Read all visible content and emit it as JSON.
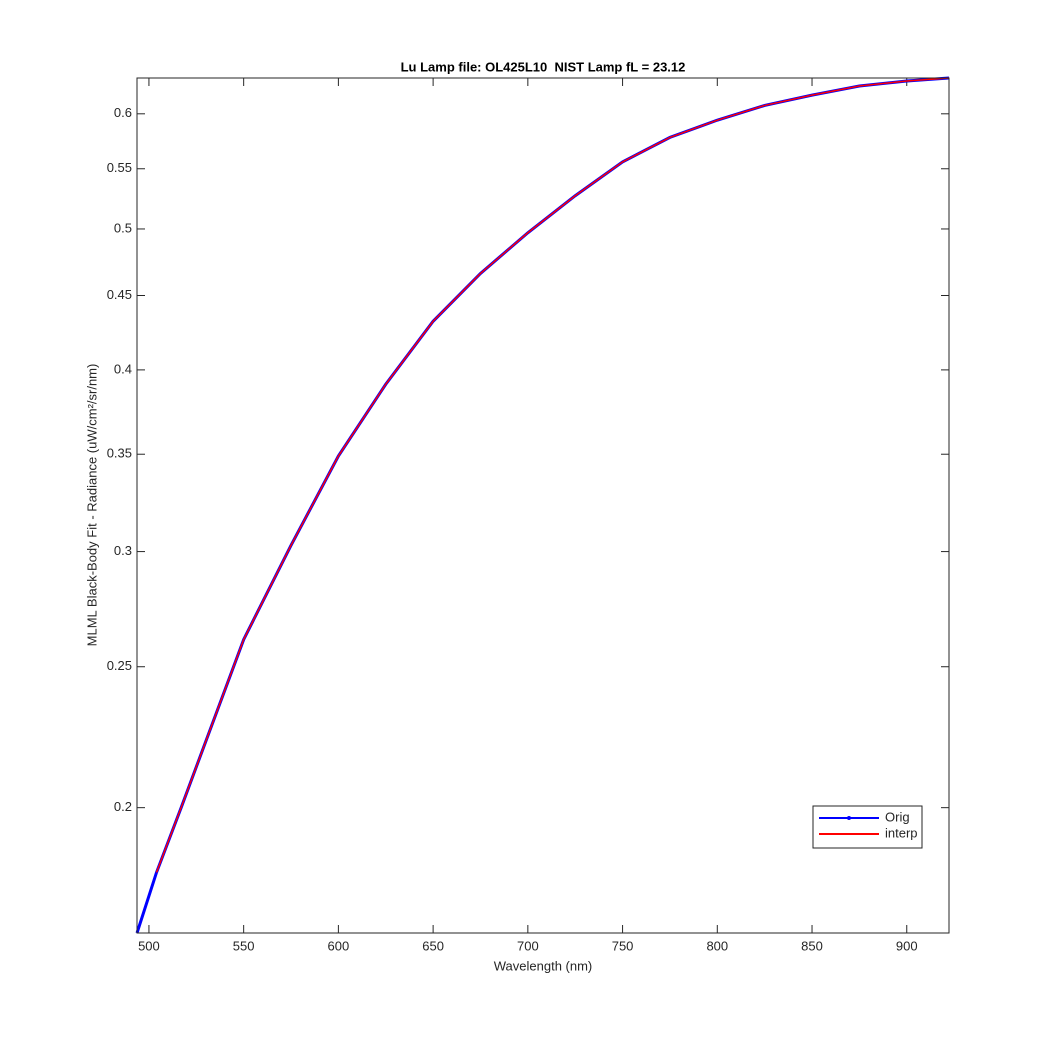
{
  "chart_data": {
    "type": "line",
    "title": "Lu Lamp file: OL425L10  NIST Lamp fL = 23.12",
    "x_label": "Wavelength (nm)",
    "y_label": "MLML Black-Body Fit - Radiance (uW/cm²/sr/nm)",
    "y_scale": "log",
    "xlim": [
      493.7,
      922.3
    ],
    "ylim": [
      0.164,
      0.635
    ],
    "xticks": [
      500,
      550,
      600,
      650,
      700,
      750,
      800,
      850,
      900
    ],
    "yticks": [
      0.2,
      0.25,
      0.3,
      0.35,
      0.4,
      0.45,
      0.5,
      0.55,
      0.6
    ],
    "legend": "lower right",
    "series": [
      {
        "name": "Orig",
        "color": "#0000ff",
        "x": [
          493.7,
          504,
          517,
          550,
          575,
          600,
          625,
          650,
          675,
          700,
          725,
          750,
          775,
          800,
          825,
          850,
          875,
          900,
          922.3
        ],
        "values": [
          0.164,
          0.1805,
          0.2,
          0.261,
          0.303,
          0.349,
          0.391,
          0.432,
          0.466,
          0.497,
          0.527,
          0.556,
          0.578,
          0.594,
          0.608,
          0.618,
          0.627,
          0.632,
          0.635
        ]
      },
      {
        "name": "interp",
        "color": "#ff0000",
        "x": [
          504,
          517,
          550,
          575,
          600,
          625,
          650,
          675,
          700,
          725,
          750,
          775,
          800,
          825,
          850,
          875,
          900,
          922.3
        ],
        "values": [
          0.1805,
          0.2,
          0.261,
          0.303,
          0.349,
          0.391,
          0.432,
          0.466,
          0.497,
          0.527,
          0.556,
          0.578,
          0.594,
          0.608,
          0.618,
          0.627,
          0.632,
          0.635
        ]
      }
    ]
  }
}
